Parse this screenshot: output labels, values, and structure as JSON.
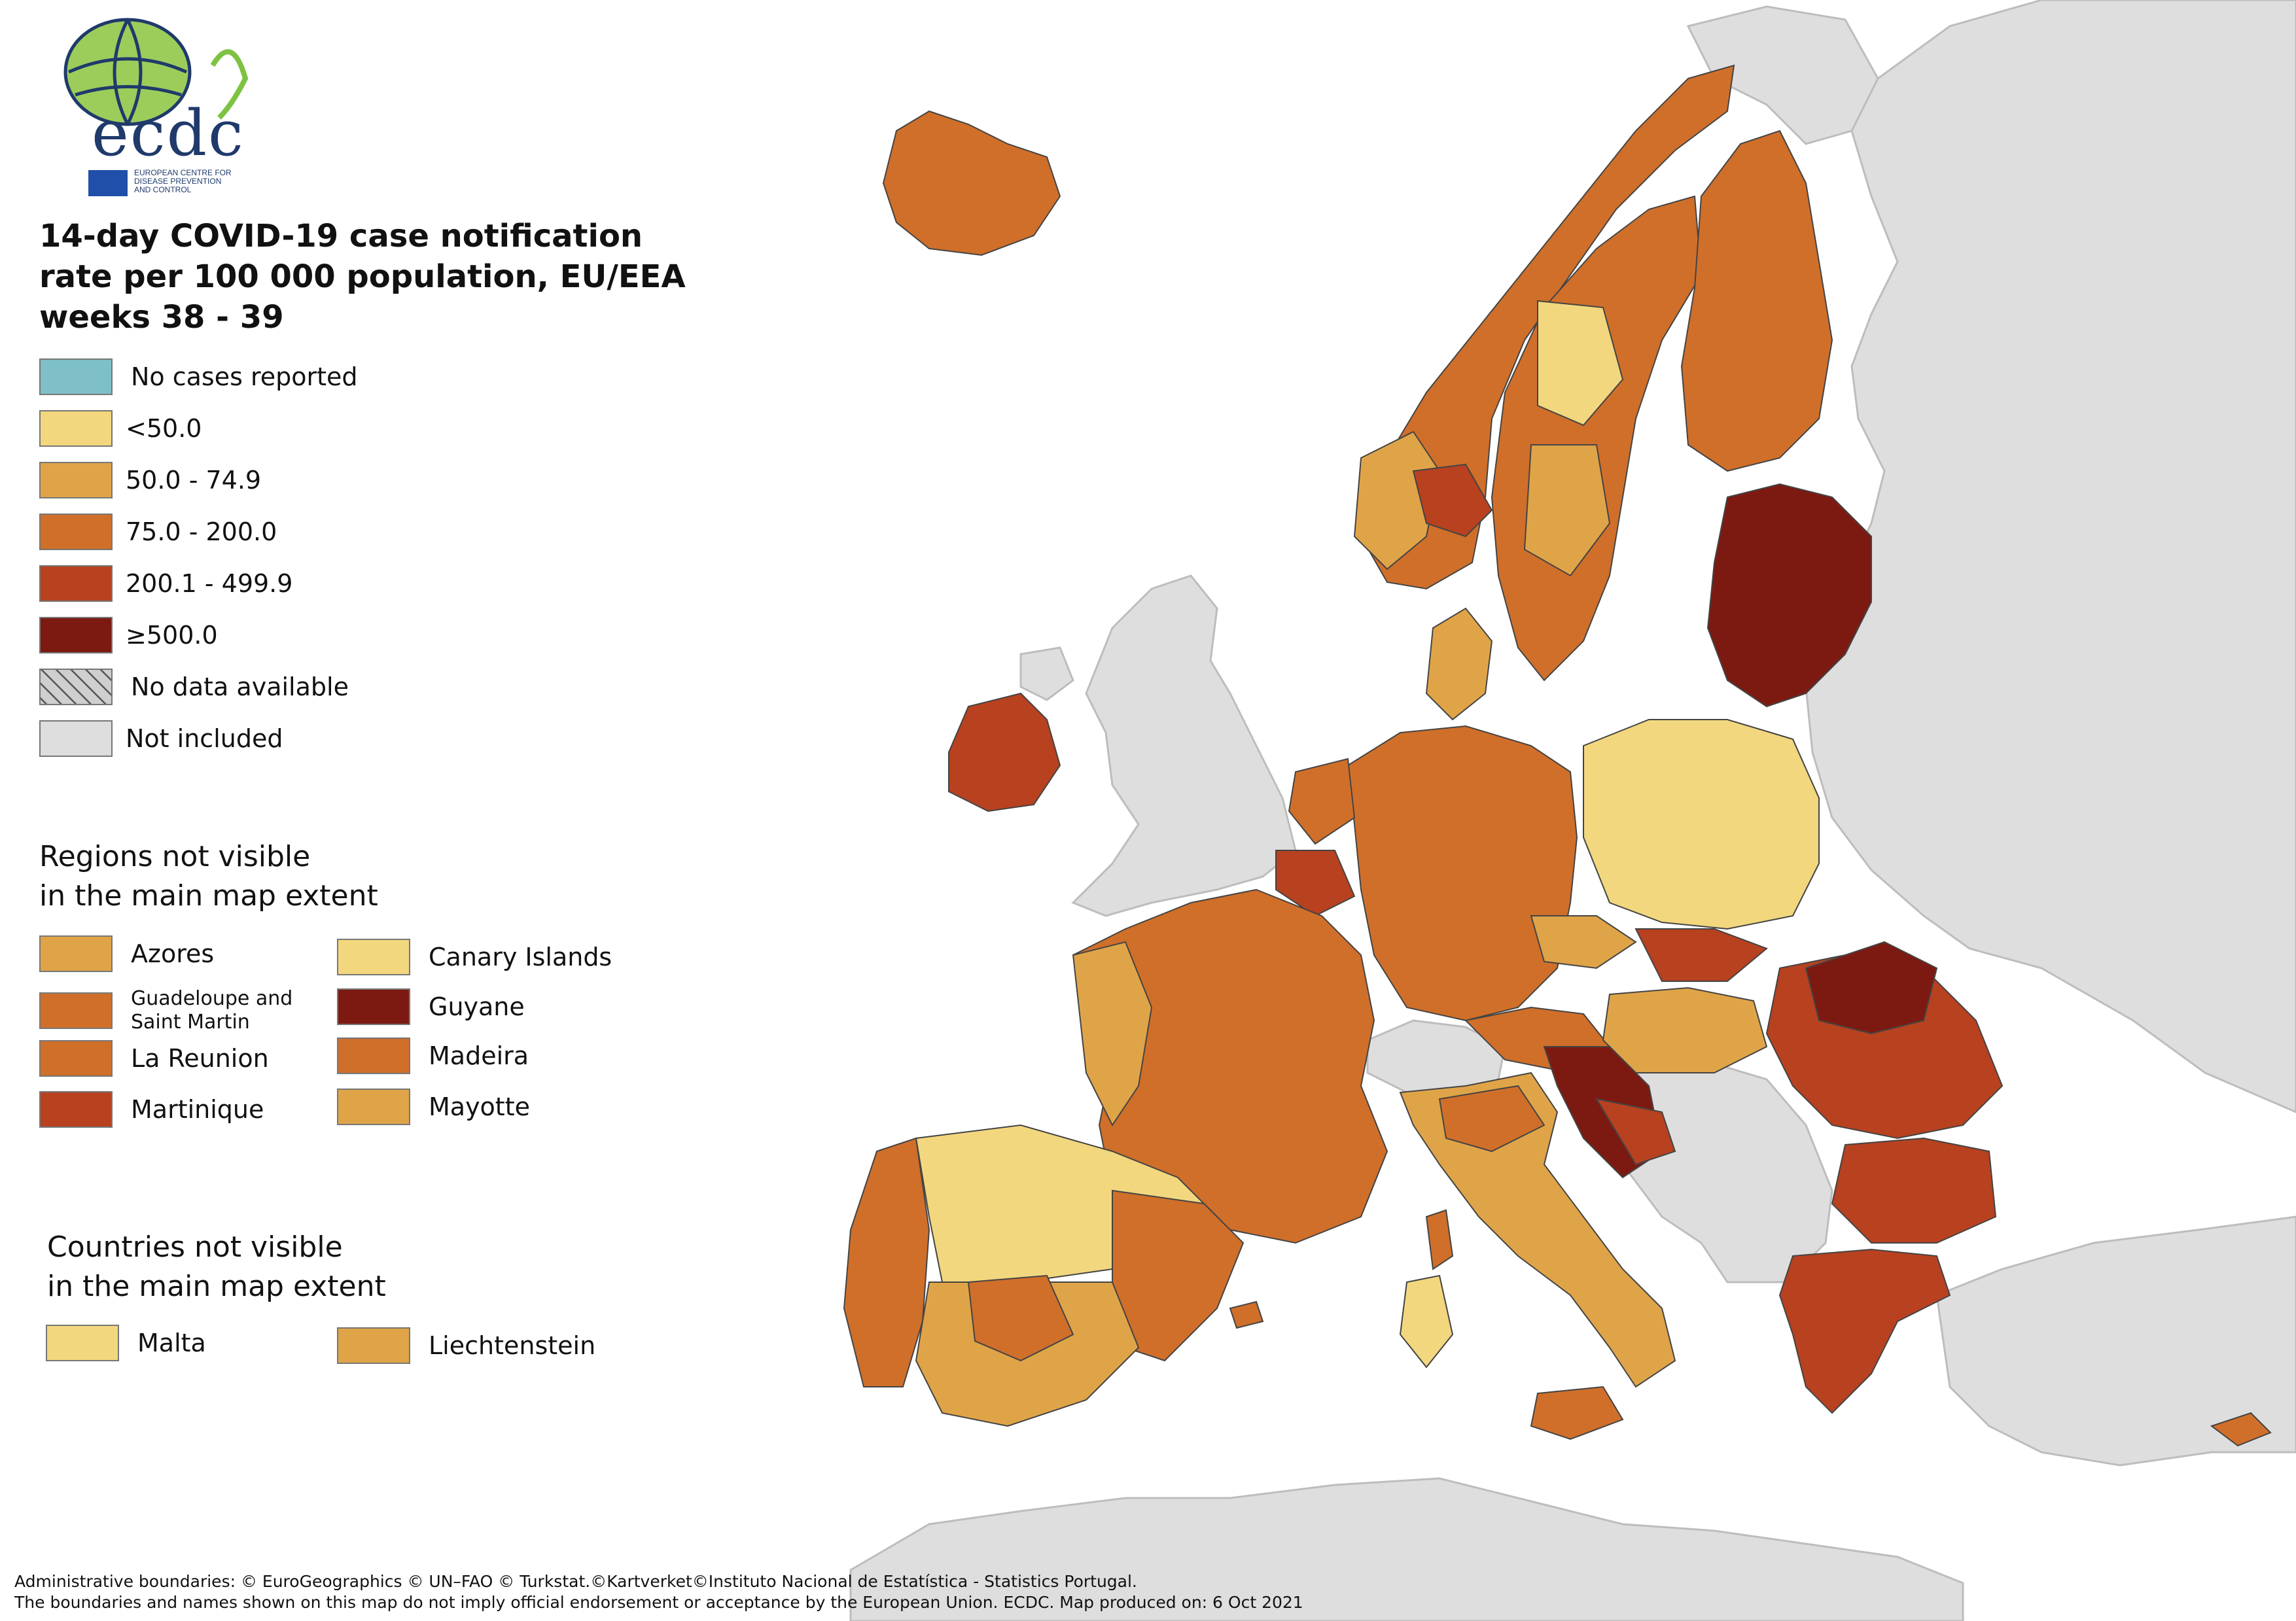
{
  "logo": {
    "acronym": "ecdc",
    "org_line1": "EUROPEAN CENTRE FOR",
    "org_line2": "DISEASE PREVENTION",
    "org_line3": "AND CONTROL"
  },
  "title": {
    "line1": "14-day COVID-19 case notification",
    "line2": "rate per 100 000 population, EU/EEA",
    "line3": "weeks 38 - 39"
  },
  "legend": {
    "items": [
      {
        "label": "No cases reported",
        "color": "#7fbfc7"
      },
      {
        "label": "<50.0",
        "color": "#f2d77e"
      },
      {
        "label": "50.0 - 74.9",
        "color": "#e0a448"
      },
      {
        "label": "75.0 - 200.0",
        "color": "#d06f2a"
      },
      {
        "label": "200.1 - 499.9",
        "color": "#b8411f"
      },
      {
        "label": "≥500.0",
        "color": "#7c1a12"
      },
      {
        "label": "No data available",
        "color": "hatched"
      },
      {
        "label": "Not included",
        "color": "#dedede"
      }
    ]
  },
  "regions_section": {
    "title_line1": "Regions not visible",
    "title_line2": "in the main map extent",
    "items": [
      {
        "label": "Azores",
        "color": "#e0a448"
      },
      {
        "label": "Canary Islands",
        "color": "#f2d77e"
      },
      {
        "label": "Guadeloupe and Saint Martin",
        "color": "#d06f2a"
      },
      {
        "label": "Guyane",
        "color": "#7c1a12"
      },
      {
        "label": "La Reunion",
        "color": "#d06f2a"
      },
      {
        "label": "Madeira",
        "color": "#d06f2a"
      },
      {
        "label": "Martinique",
        "color": "#b8411f"
      },
      {
        "label": "Mayotte",
        "color": "#e0a448"
      }
    ]
  },
  "countries_section": {
    "title_line1": "Countries not visible",
    "title_line2": "in the main map extent",
    "items": [
      {
        "label": "Malta",
        "color": "#f2d77e"
      },
      {
        "label": "Liechtenstein",
        "color": "#e0a448"
      }
    ]
  },
  "footer": {
    "line1": "Administrative boundaries: © EuroGeographics © UN–FAO © Turkstat.©Kartverket©Instituto Nacional de Estatística - Statistics Portugal.",
    "line2": "The boundaries and names shown on this map do not imply official endorsement or acceptance by the European Union. ECDC. Map produced on: 6 Oct 2021"
  }
}
